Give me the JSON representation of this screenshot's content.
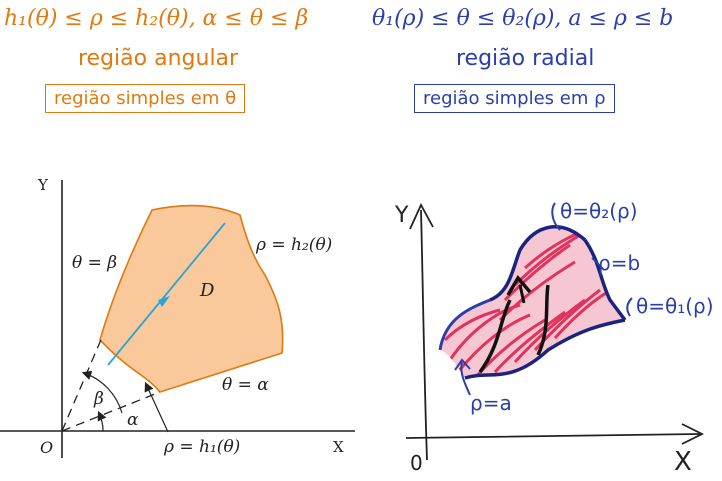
{
  "left_panel": {
    "formula": "h₁(θ) ≤ ρ ≤ h₂(θ),   α ≤ θ ≤ β",
    "subtitle": "região angular",
    "boxed_label": "região simples em θ",
    "diagram": {
      "y_axis": "Y",
      "x_axis": "X",
      "origin": "O",
      "region": "D",
      "theta_beta": "θ = β",
      "theta_alpha": "θ = α",
      "outer_curve": "ρ = h₂(θ)",
      "inner_curve": "ρ = h₁(θ)",
      "beta": "β",
      "alpha": "α"
    },
    "colors": {
      "accent": "#e07a10",
      "fill": "#f9c99b",
      "ray": "#2aa3d8"
    }
  },
  "right_panel": {
    "formula": "θ₁(ρ) ≤ θ ≤ θ₂(ρ),   a ≤ ρ ≤ b",
    "subtitle": "região radial",
    "boxed_label": "região simples em ρ",
    "sketch": {
      "y_axis": "Y",
      "x_axis": "X",
      "origin": "0",
      "theta2_curve": "θ=θ₂(ρ)",
      "rho_b": "ρ=b",
      "theta1_curve": "θ=θ₁(ρ)",
      "rho_a": "ρ=a"
    },
    "colors": {
      "accent": "#2b3fa8",
      "hatch": "#e0335e"
    }
  }
}
